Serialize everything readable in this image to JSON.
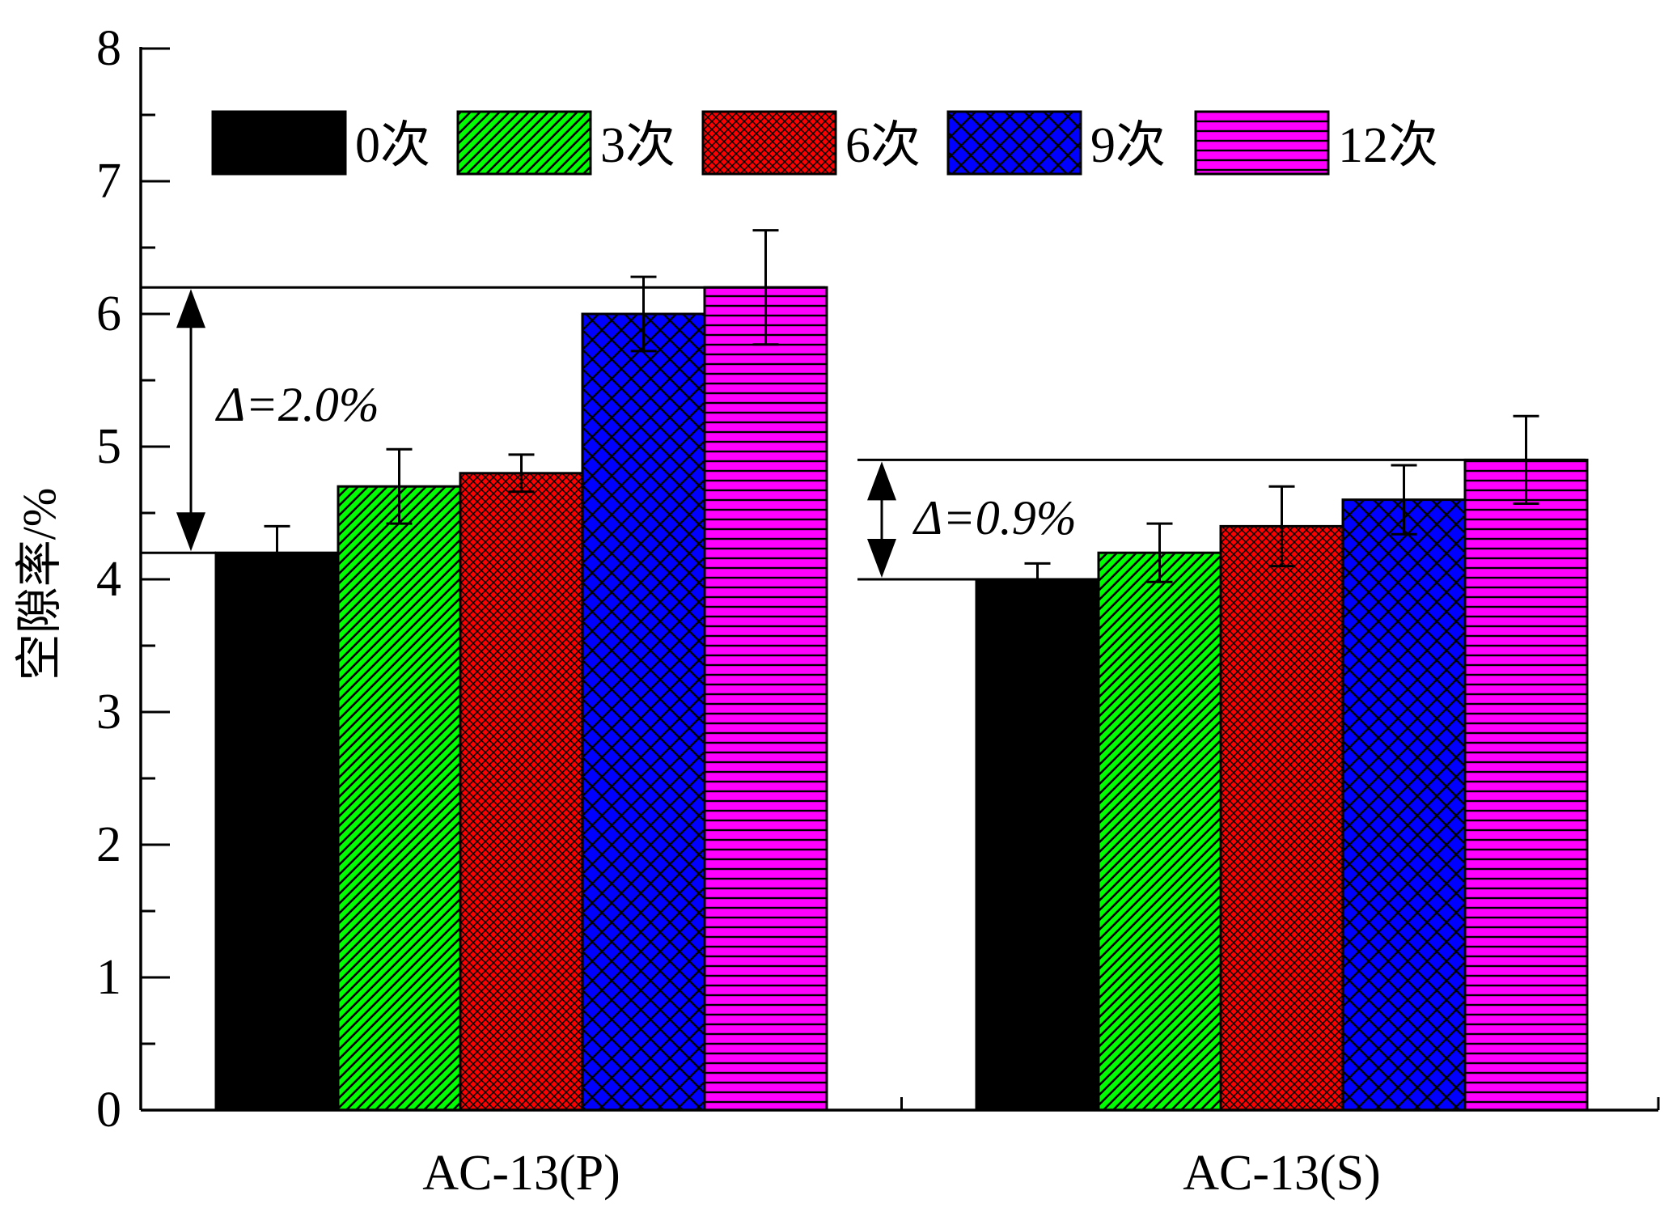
{
  "chart_data": {
    "type": "bar",
    "title": "",
    "xlabel": "",
    "ylabel": "空隙率/%",
    "ylim": [
      0,
      8
    ],
    "yticks": [
      "0",
      "1",
      "2",
      "3",
      "4",
      "5",
      "6",
      "7",
      "8"
    ],
    "categories": [
      "AC-13(P)",
      "AC-13(S)"
    ],
    "legend_position": "top",
    "series": [
      {
        "name": "0次",
        "color": "#000000",
        "pattern": "solid",
        "values": [
          4.2,
          4.0
        ],
        "errors": [
          0.2,
          0.12
        ]
      },
      {
        "name": "3次",
        "color": "#00ff00",
        "pattern": "diagonal",
        "values": [
          4.7,
          4.2
        ],
        "errors": [
          0.28,
          0.22
        ]
      },
      {
        "name": "6次",
        "color": "#ff0000",
        "pattern": "fine-cross",
        "values": [
          4.8,
          4.4
        ],
        "errors": [
          0.14,
          0.3
        ]
      },
      {
        "name": "9次",
        "color": "#0000ff",
        "pattern": "cross",
        "values": [
          6.0,
          4.6
        ],
        "errors": [
          0.28,
          0.26
        ]
      },
      {
        "name": "12次",
        "color": "#ff00ff",
        "pattern": "horizontal",
        "values": [
          6.2,
          4.9
        ],
        "errors": [
          0.43,
          0.33
        ]
      }
    ],
    "annotations": [
      {
        "label": "Δ=2.0%",
        "category": "AC-13(P)",
        "from": 4.2,
        "to": 6.2
      },
      {
        "label": "Δ=0.9%",
        "category": "AC-13(S)",
        "from": 4.0,
        "to": 4.9
      }
    ]
  }
}
